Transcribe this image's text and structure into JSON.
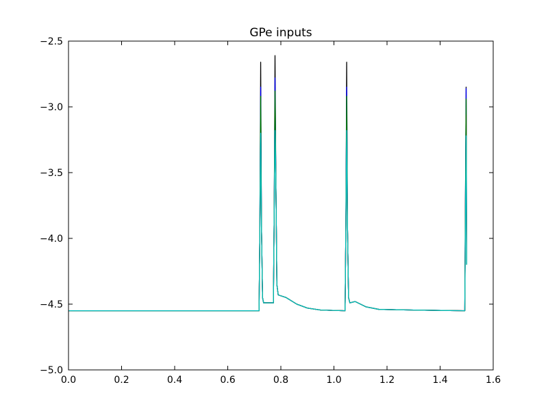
{
  "chart_data": {
    "type": "line",
    "title": "GPe inputs",
    "xlabel": "",
    "ylabel": "",
    "xlim": [
      0.0,
      1.6
    ],
    "ylim": [
      -5.0,
      -2.5
    ],
    "x_ticks": [
      0.0,
      0.2,
      0.4,
      0.6,
      0.8,
      1.0,
      1.2,
      1.4,
      1.6
    ],
    "x_tick_labels": [
      "0.0",
      "0.2",
      "0.4",
      "0.6",
      "0.8",
      "1.0",
      "1.2",
      "1.4",
      "1.6"
    ],
    "y_ticks": [
      -5.0,
      -4.5,
      -4.0,
      -3.5,
      -3.0,
      -2.5
    ],
    "y_tick_labels": [
      "−5.0",
      "−4.5",
      "−4.0",
      "−3.5",
      "−3.0",
      "−2.5"
    ],
    "grid": false,
    "series": [
      {
        "color": "#000000",
        "points": [
          [
            0.0,
            -4.55
          ],
          [
            0.718,
            -4.55
          ],
          [
            0.721,
            -3.9
          ],
          [
            0.724,
            -2.66
          ],
          [
            0.727,
            -3.9
          ],
          [
            0.731,
            -4.45
          ],
          [
            0.735,
            -4.49
          ],
          [
            0.772,
            -4.49
          ],
          [
            0.775,
            -3.8
          ],
          [
            0.778,
            -2.61
          ],
          [
            0.781,
            -3.5
          ],
          [
            0.785,
            -4.35
          ],
          [
            0.79,
            -4.43
          ],
          [
            0.82,
            -4.45
          ],
          [
            0.86,
            -4.5
          ],
          [
            0.9,
            -4.53
          ],
          [
            0.95,
            -4.545
          ],
          [
            1.042,
            -4.55
          ],
          [
            1.045,
            -3.9
          ],
          [
            1.048,
            -2.66
          ],
          [
            1.051,
            -3.9
          ],
          [
            1.055,
            -4.45
          ],
          [
            1.06,
            -4.49
          ],
          [
            1.08,
            -4.48
          ],
          [
            1.12,
            -4.52
          ],
          [
            1.17,
            -4.54
          ],
          [
            1.3,
            -4.545
          ],
          [
            1.493,
            -4.55
          ],
          [
            1.496,
            -3.5
          ],
          [
            1.498,
            -2.85
          ],
          [
            1.5,
            -4.2
          ]
        ]
      },
      {
        "color": "#0000ff",
        "points": [
          [
            0.0,
            -4.55
          ],
          [
            0.718,
            -4.55
          ],
          [
            0.721,
            -3.9
          ],
          [
            0.724,
            -2.85
          ],
          [
            0.727,
            -3.9
          ],
          [
            0.731,
            -4.45
          ],
          [
            0.735,
            -4.49
          ],
          [
            0.772,
            -4.49
          ],
          [
            0.775,
            -3.8
          ],
          [
            0.778,
            -2.78
          ],
          [
            0.781,
            -3.5
          ],
          [
            0.785,
            -4.35
          ],
          [
            0.79,
            -4.43
          ],
          [
            0.82,
            -4.45
          ],
          [
            0.86,
            -4.5
          ],
          [
            0.9,
            -4.53
          ],
          [
            0.95,
            -4.545
          ],
          [
            1.042,
            -4.55
          ],
          [
            1.045,
            -3.9
          ],
          [
            1.048,
            -2.85
          ],
          [
            1.051,
            -3.9
          ],
          [
            1.055,
            -4.45
          ],
          [
            1.06,
            -4.49
          ],
          [
            1.08,
            -4.48
          ],
          [
            1.12,
            -4.52
          ],
          [
            1.17,
            -4.54
          ],
          [
            1.3,
            -4.545
          ],
          [
            1.493,
            -4.55
          ],
          [
            1.496,
            -3.5
          ],
          [
            1.498,
            -2.86
          ],
          [
            1.5,
            -4.2
          ]
        ]
      },
      {
        "color": "#ff0000",
        "points": [
          [
            0.0,
            -4.55
          ],
          [
            0.718,
            -4.55
          ],
          [
            0.721,
            -3.9
          ],
          [
            0.724,
            -3.2
          ],
          [
            0.727,
            -3.9
          ],
          [
            0.731,
            -4.45
          ],
          [
            0.735,
            -4.49
          ],
          [
            0.772,
            -4.49
          ],
          [
            0.775,
            -3.8
          ],
          [
            0.778,
            -3.05
          ],
          [
            0.781,
            -3.5
          ],
          [
            0.785,
            -4.35
          ],
          [
            0.79,
            -4.43
          ],
          [
            0.82,
            -4.45
          ],
          [
            0.86,
            -4.5
          ],
          [
            0.9,
            -4.53
          ],
          [
            0.95,
            -4.545
          ],
          [
            1.042,
            -4.55
          ],
          [
            1.045,
            -3.9
          ],
          [
            1.048,
            -3.2
          ],
          [
            1.051,
            -3.9
          ],
          [
            1.055,
            -4.45
          ],
          [
            1.06,
            -4.49
          ],
          [
            1.08,
            -4.48
          ],
          [
            1.12,
            -4.52
          ],
          [
            1.17,
            -4.54
          ],
          [
            1.3,
            -4.545
          ],
          [
            1.493,
            -4.55
          ],
          [
            1.496,
            -3.6
          ],
          [
            1.498,
            -3.06
          ],
          [
            1.5,
            -4.2
          ]
        ]
      },
      {
        "color": "#008000",
        "points": [
          [
            0.0,
            -4.55
          ],
          [
            0.718,
            -4.55
          ],
          [
            0.721,
            -3.9
          ],
          [
            0.724,
            -2.92
          ],
          [
            0.727,
            -3.9
          ],
          [
            0.731,
            -4.45
          ],
          [
            0.735,
            -4.49
          ],
          [
            0.772,
            -4.49
          ],
          [
            0.775,
            -3.8
          ],
          [
            0.778,
            -2.88
          ],
          [
            0.781,
            -3.5
          ],
          [
            0.785,
            -4.35
          ],
          [
            0.79,
            -4.43
          ],
          [
            0.82,
            -4.45
          ],
          [
            0.86,
            -4.5
          ],
          [
            0.9,
            -4.53
          ],
          [
            0.95,
            -4.545
          ],
          [
            1.042,
            -4.55
          ],
          [
            1.045,
            -3.9
          ],
          [
            1.048,
            -2.92
          ],
          [
            1.051,
            -3.9
          ],
          [
            1.055,
            -4.45
          ],
          [
            1.06,
            -4.49
          ],
          [
            1.08,
            -4.48
          ],
          [
            1.12,
            -4.52
          ],
          [
            1.17,
            -4.54
          ],
          [
            1.3,
            -4.545
          ],
          [
            1.493,
            -4.55
          ],
          [
            1.496,
            -3.55
          ],
          [
            1.498,
            -2.94
          ],
          [
            1.5,
            -4.2
          ]
        ]
      },
      {
        "color": "#00bfbf",
        "points": [
          [
            0.0,
            -4.55
          ],
          [
            0.718,
            -4.55
          ],
          [
            0.721,
            -3.9
          ],
          [
            0.724,
            -3.2
          ],
          [
            0.727,
            -3.9
          ],
          [
            0.731,
            -4.45
          ],
          [
            0.735,
            -4.49
          ],
          [
            0.772,
            -4.49
          ],
          [
            0.775,
            -3.8
          ],
          [
            0.778,
            -3.18
          ],
          [
            0.781,
            -3.5
          ],
          [
            0.785,
            -4.35
          ],
          [
            0.79,
            -4.43
          ],
          [
            0.82,
            -4.45
          ],
          [
            0.86,
            -4.5
          ],
          [
            0.9,
            -4.53
          ],
          [
            0.95,
            -4.545
          ],
          [
            1.042,
            -4.55
          ],
          [
            1.045,
            -3.9
          ],
          [
            1.048,
            -3.18
          ],
          [
            1.051,
            -3.9
          ],
          [
            1.055,
            -4.45
          ],
          [
            1.06,
            -4.49
          ],
          [
            1.08,
            -4.48
          ],
          [
            1.12,
            -4.52
          ],
          [
            1.17,
            -4.54
          ],
          [
            1.3,
            -4.545
          ],
          [
            1.493,
            -4.55
          ],
          [
            1.496,
            -3.7
          ],
          [
            1.498,
            -3.22
          ],
          [
            1.5,
            -4.2
          ]
        ]
      }
    ]
  }
}
